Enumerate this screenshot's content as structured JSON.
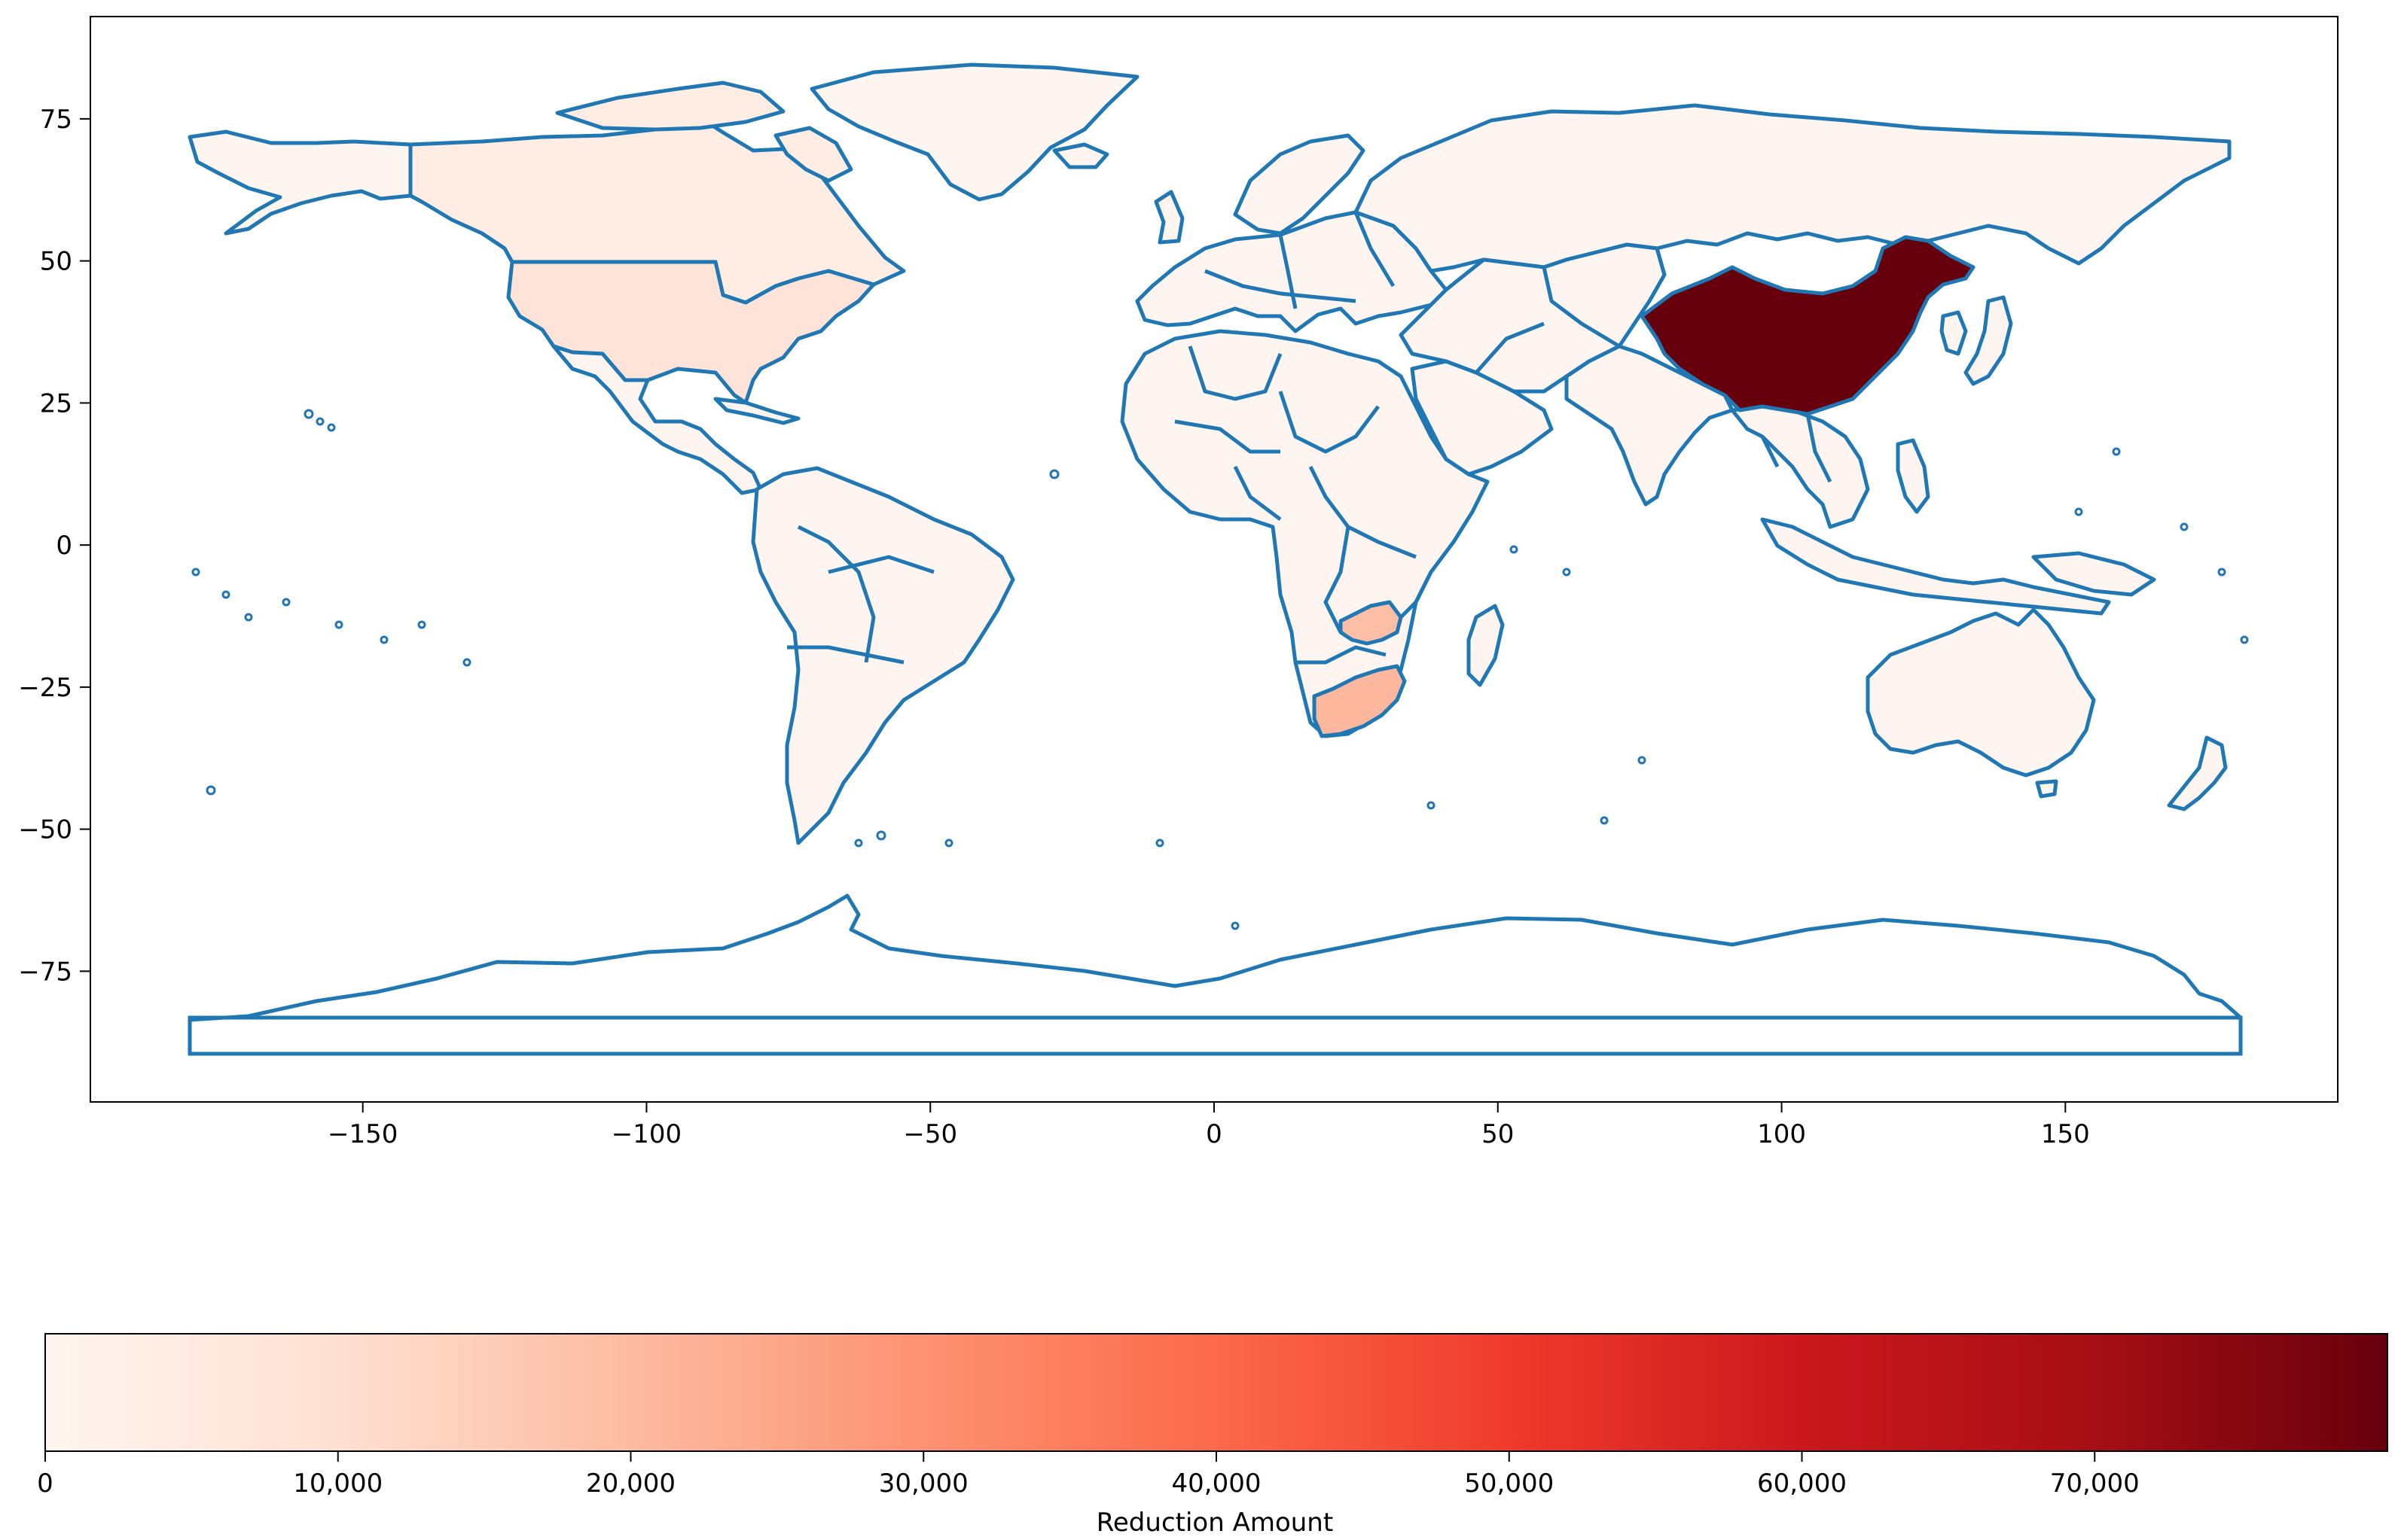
{
  "chart_data": {
    "type": "choropleth-map",
    "projection": "plate-carree",
    "x_axis": {
      "range": [
        -198,
        198
      ],
      "ticks": [
        -150,
        -100,
        -50,
        0,
        50,
        100,
        150
      ],
      "tick_labels": [
        "−150",
        "−100",
        "−50",
        "0",
        "50",
        "100",
        "150"
      ]
    },
    "y_axis": {
      "range": [
        -98,
        93
      ],
      "ticks": [
        75,
        50,
        25,
        0,
        -25,
        -50,
        -75
      ],
      "tick_labels": [
        "75",
        "50",
        "25",
        "0",
        "−25",
        "−50",
        "−75"
      ]
    },
    "colormap": "Reds",
    "color_range": [
      0,
      80000
    ],
    "colorbar": {
      "label": "Reduction Amount",
      "ticks": [
        0,
        10000,
        20000,
        30000,
        40000,
        50000,
        60000,
        70000
      ],
      "tick_labels": [
        "0",
        "10,000",
        "20,000",
        "30,000",
        "40,000",
        "50,000",
        "60,000",
        "70,000"
      ],
      "orientation": "horizontal",
      "placement": "bottom"
    },
    "colors": {
      "boundary": "#1f77b4",
      "default_fill": "#fff5f0",
      "colormap_stops": [
        "#fff5f0",
        "#fee0d2",
        "#fcbba1",
        "#fc9272",
        "#fb6a4a",
        "#ef3b2c",
        "#cb181d",
        "#a50f15",
        "#67000d"
      ]
    },
    "highlighted_regions": [
      {
        "name": "China",
        "value": 80000
      },
      {
        "name": "South Africa",
        "value": 21000
      },
      {
        "name": "Zambia",
        "value": 19000
      },
      {
        "name": "Canada",
        "value": 4000
      },
      {
        "name": "United States",
        "value": 8000
      }
    ]
  }
}
